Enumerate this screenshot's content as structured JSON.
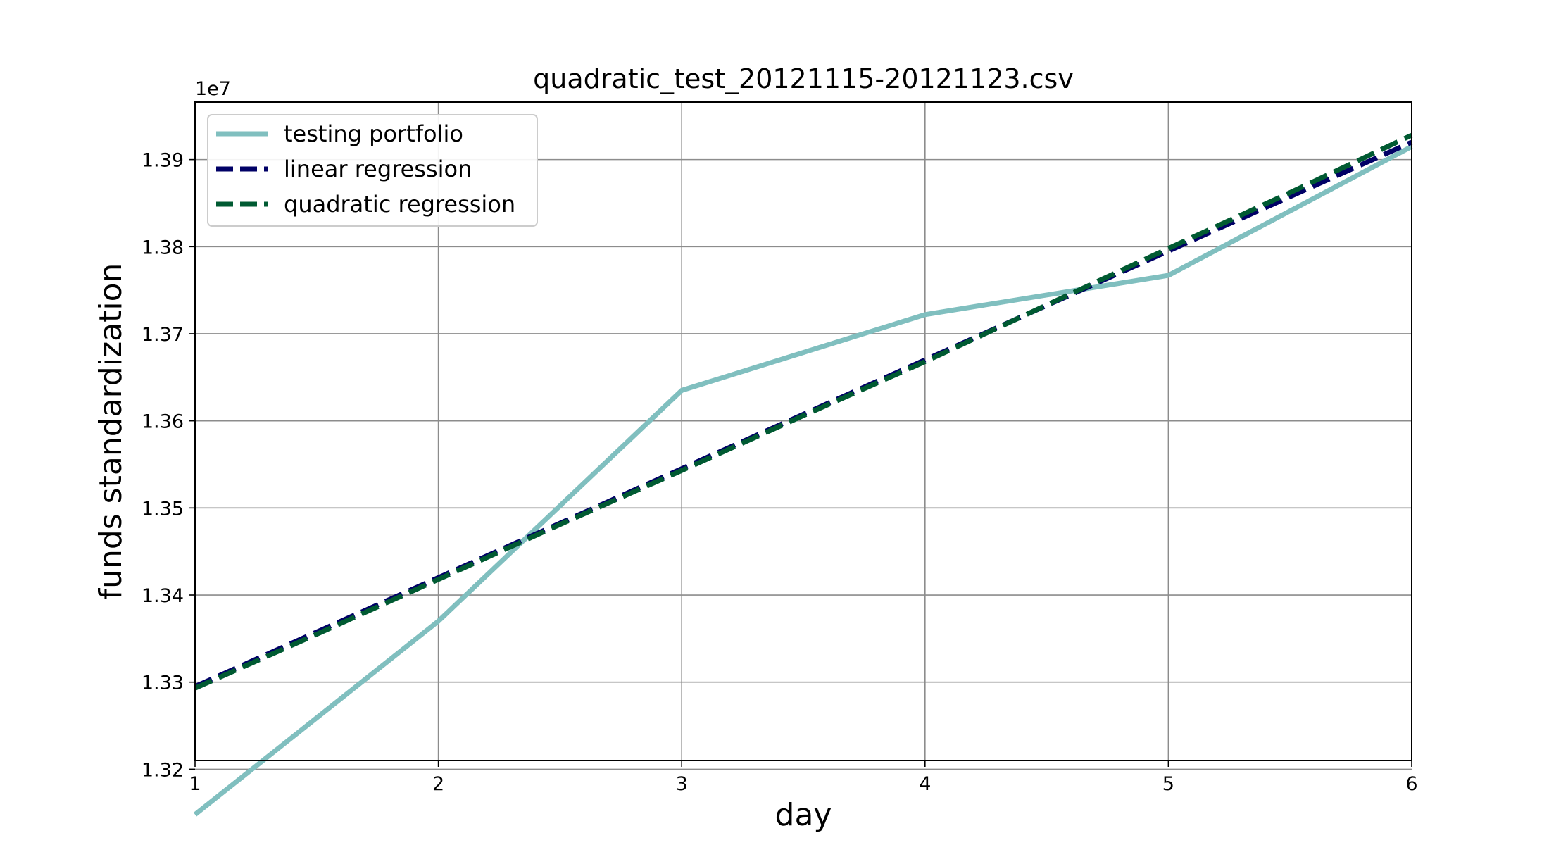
{
  "chart_data": {
    "type": "line",
    "title": "quadratic_test_20121115-20121123.csv",
    "xlabel": "day",
    "ylabel": "funds standardization",
    "y_offset_label": "1e7",
    "xlim": [
      1,
      6
    ],
    "ylim": [
      13.21,
      13.966
    ],
    "x_ticks": [
      1,
      2,
      3,
      4,
      5,
      6
    ],
    "x_tick_labels": [
      "1",
      "2",
      "3",
      "4",
      "5",
      "6"
    ],
    "y_ticks": [
      13.2,
      13.3,
      13.4,
      13.5,
      13.6,
      13.7,
      13.8,
      13.9
    ],
    "y_tick_labels": [
      "1.32",
      "1.33",
      "1.34",
      "1.35",
      "1.36",
      "1.37",
      "1.38",
      "1.39"
    ],
    "grid": true,
    "legend_position": "top-left",
    "series": [
      {
        "name": "testing portfolio",
        "color": "#80bfbf",
        "style": "solid",
        "x": [
          1,
          2,
          3,
          4,
          5,
          6
        ],
        "y": [
          13.148,
          13.37,
          13.635,
          13.722,
          13.767,
          13.915
        ]
      },
      {
        "name": "linear regression",
        "color": "#000066",
        "style": "dashed",
        "x": [
          1,
          2,
          3,
          4,
          5,
          6
        ],
        "y": [
          13.295,
          13.42,
          13.545,
          13.67,
          13.795,
          13.92
        ]
      },
      {
        "name": "quadratic regression",
        "color": "#005a32",
        "style": "dashed",
        "x": [
          1,
          1.5,
          2,
          2.5,
          3,
          3.5,
          4,
          4.5,
          5,
          5.5,
          6
        ],
        "y": [
          13.293,
          13.355,
          13.418,
          13.481,
          13.543,
          13.606,
          13.668,
          13.733,
          13.798,
          13.862,
          13.928
        ]
      }
    ]
  }
}
